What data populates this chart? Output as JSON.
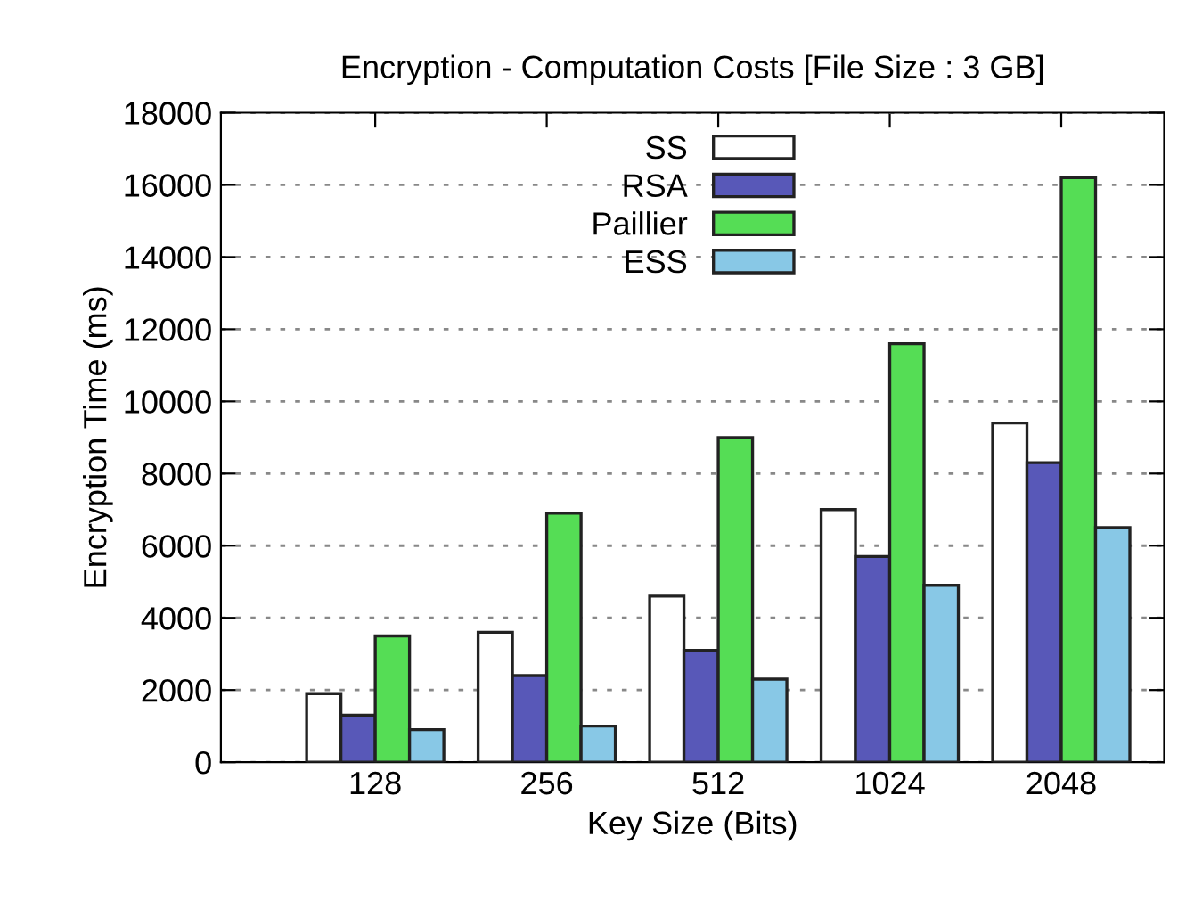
{
  "chart_data": {
    "type": "bar",
    "title": "Encryption - Computation Costs [File Size : 3 GB]",
    "xlabel": "Key Size (Bits)",
    "ylabel": "Encryption Time (ms)",
    "categories": [
      "128",
      "256",
      "512",
      "1024",
      "2048"
    ],
    "series": [
      {
        "name": "SS",
        "color": "#ffffff",
        "values": [
          1900,
          3600,
          4600,
          7000,
          9400
        ]
      },
      {
        "name": "RSA",
        "color": "#5858b8",
        "values": [
          1300,
          2400,
          3100,
          5700,
          8300
        ]
      },
      {
        "name": "Paillier",
        "color": "#55dd55",
        "values": [
          3500,
          6900,
          9000,
          11600,
          16200
        ]
      },
      {
        "name": "ESS",
        "color": "#88c8e6",
        "values": [
          900,
          1000,
          2300,
          4900,
          6500
        ]
      }
    ],
    "ylim": [
      0,
      18000
    ],
    "yticks": [
      0,
      2000,
      4000,
      6000,
      8000,
      10000,
      12000,
      14000,
      16000,
      18000
    ],
    "grid": "y",
    "legend": "top"
  }
}
